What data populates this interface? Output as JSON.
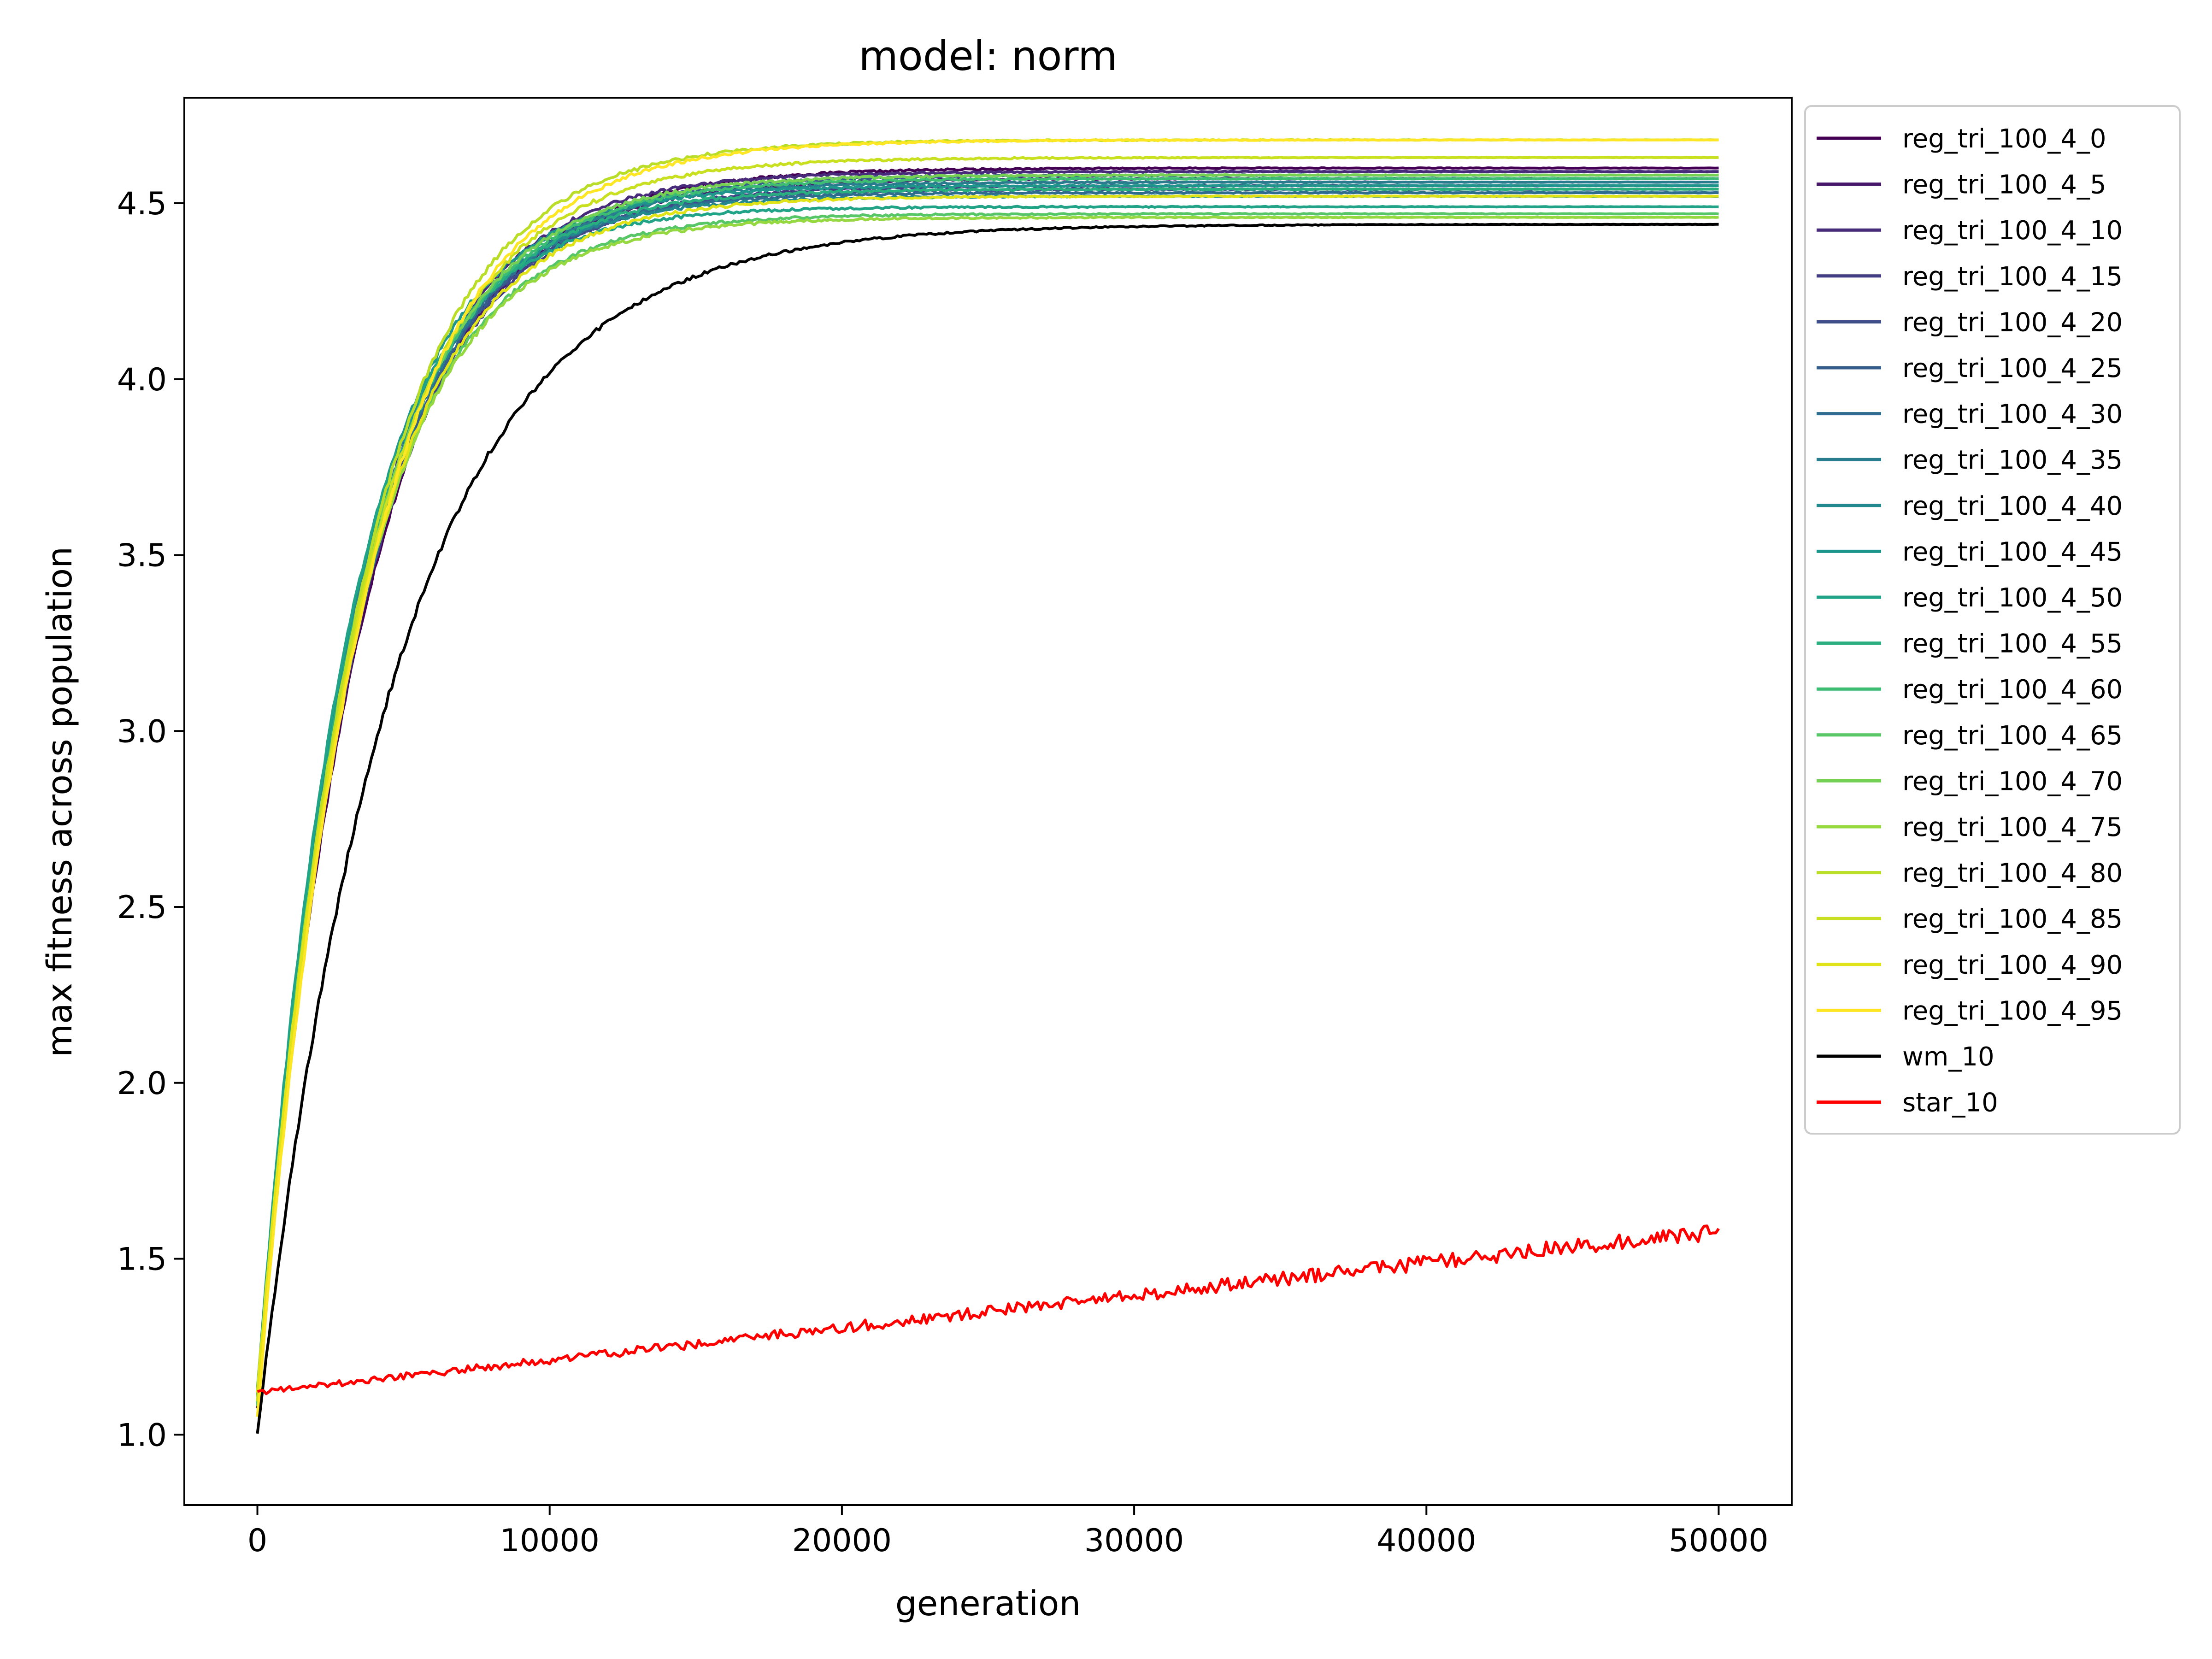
{
  "chart_data": {
    "type": "line",
    "title": "model: norm",
    "xlabel": "generation",
    "ylabel": "max fitness across population",
    "xlim": [
      -2500,
      52500
    ],
    "ylim": [
      0.8,
      4.8
    ],
    "xticks": [
      0,
      10000,
      20000,
      30000,
      40000,
      50000
    ],
    "xtick_labels": [
      "0",
      "10000",
      "20000",
      "30000",
      "40000",
      "50000"
    ],
    "yticks": [
      1.0,
      1.5,
      2.0,
      2.5,
      3.0,
      3.5,
      4.0,
      4.5
    ],
    "ytick_labels": [
      "1.0",
      "1.5",
      "2.0",
      "2.5",
      "3.0",
      "3.5",
      "4.0",
      "4.5"
    ],
    "grid": false,
    "legend_position": "outside-right",
    "series": [
      {
        "name": "reg_tri_100_4_0",
        "color": "#440154",
        "start": 1.1,
        "final": 4.6,
        "k": 0.00028
      },
      {
        "name": "reg_tri_100_4_5",
        "color": "#481769",
        "start": 1.08,
        "final": 4.57,
        "k": 0.00029
      },
      {
        "name": "reg_tri_100_4_10",
        "color": "#472a7a",
        "start": 1.1,
        "final": 4.59,
        "k": 0.0003
      },
      {
        "name": "reg_tri_100_4_15",
        "color": "#433d84",
        "start": 1.12,
        "final": 4.55,
        "k": 0.00029
      },
      {
        "name": "reg_tri_100_4_20",
        "color": "#3d4e8a",
        "start": 1.1,
        "final": 4.54,
        "k": 0.0003
      },
      {
        "name": "reg_tri_100_4_25",
        "color": "#355e8d",
        "start": 1.09,
        "final": 4.58,
        "k": 0.00029
      },
      {
        "name": "reg_tri_100_4_30",
        "color": "#2e6d8e",
        "start": 1.12,
        "final": 4.53,
        "k": 0.00031
      },
      {
        "name": "reg_tri_100_4_35",
        "color": "#297b8e",
        "start": 1.1,
        "final": 4.56,
        "k": 0.0003
      },
      {
        "name": "reg_tri_100_4_40",
        "color": "#23898e",
        "start": 1.11,
        "final": 4.52,
        "k": 0.00032
      },
      {
        "name": "reg_tri_100_4_45",
        "color": "#1f968b",
        "start": 1.1,
        "final": 4.55,
        "k": 0.00032
      },
      {
        "name": "reg_tri_100_4_50",
        "color": "#20a386",
        "start": 1.12,
        "final": 4.49,
        "k": 0.00033
      },
      {
        "name": "reg_tri_100_4_55",
        "color": "#29af7f",
        "start": 1.1,
        "final": 4.54,
        "k": 0.00031
      },
      {
        "name": "reg_tri_100_4_60",
        "color": "#3dbc74",
        "start": 1.1,
        "final": 4.57,
        "k": 0.0003
      },
      {
        "name": "reg_tri_100_4_65",
        "color": "#56c667",
        "start": 1.09,
        "final": 4.47,
        "k": 0.00031
      },
      {
        "name": "reg_tri_100_4_70",
        "color": "#75d054",
        "start": 1.1,
        "final": 4.58,
        "k": 0.0003
      },
      {
        "name": "reg_tri_100_4_75",
        "color": "#95d840",
        "start": 1.1,
        "final": 4.46,
        "k": 0.00031
      },
      {
        "name": "reg_tri_100_4_80",
        "color": "#bade28",
        "start": 1.1,
        "final": 4.68,
        "k": 0.00029
      },
      {
        "name": "reg_tri_100_4_85",
        "color": "#c8e020",
        "start": 1.1,
        "final": 4.63,
        "k": 0.00029
      },
      {
        "name": "reg_tri_100_4_90",
        "color": "#dfe318",
        "start": 1.12,
        "final": 4.52,
        "k": 0.0003
      },
      {
        "name": "reg_tri_100_4_95",
        "color": "#fde725",
        "start": 1.05,
        "final": 4.68,
        "k": 0.00028
      },
      {
        "name": "wm_10",
        "color": "#000000",
        "start": 1.0,
        "final": 4.44,
        "k": 0.00021
      },
      {
        "name": "star_10",
        "color": "#ff0000",
        "start": 1.12,
        "final": 1.58,
        "k": 0
      }
    ]
  }
}
